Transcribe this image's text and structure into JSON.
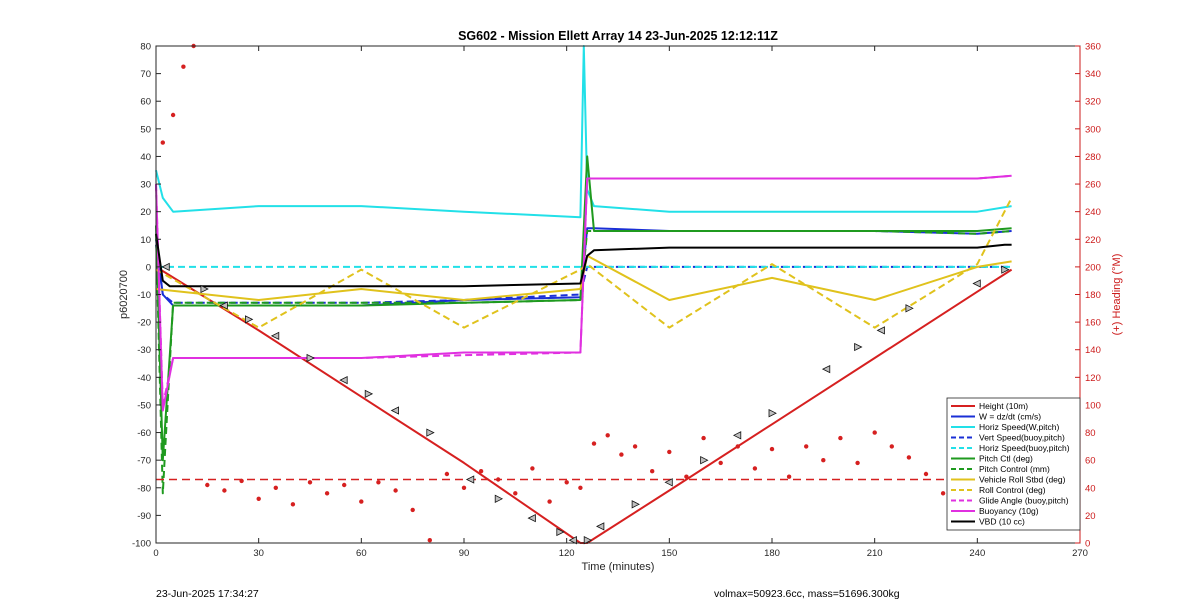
{
  "chart_data": {
    "type": "line",
    "title": "SG602 - Mission Ellett Array 14 23-Jun-2025 12:12:11Z",
    "xlabel": "Time (minutes)",
    "ylabel": "p6020700",
    "y2label": "(+) Heading (°M)",
    "xlim": [
      0,
      270
    ],
    "ylim": [
      -100,
      80
    ],
    "y2lim": [
      0,
      360
    ],
    "xticks": [
      "0",
      "30",
      "60",
      "90",
      "120",
      "150",
      "180",
      "210",
      "240",
      "270"
    ],
    "yticks": [
      "80",
      "70",
      "60",
      "50",
      "40",
      "30",
      "20",
      "10",
      "0",
      "-10",
      "-20",
      "-30",
      "-40",
      "-50",
      "-60",
      "-70",
      "-80",
      "-90",
      "-100"
    ],
    "y2ticks": [
      "360",
      "340",
      "320",
      "300",
      "280",
      "260",
      "240",
      "220",
      "200",
      "180",
      "160",
      "140",
      "120",
      "100",
      "80",
      "60",
      "40",
      "20",
      "0"
    ],
    "legend_position": "bottom-right",
    "series": [
      {
        "name": "Height (10m)",
        "color": "#d62020",
        "style": "solid",
        "x": [
          0,
          30,
          60,
          90,
          124,
          126,
          150,
          180,
          210,
          240,
          250
        ],
        "y": [
          0,
          -23,
          -47,
          -71,
          -100,
          -100,
          -81,
          -57,
          -33,
          -9,
          -1
        ]
      },
      {
        "name": "W = dz/dt (cm/s)",
        "color": "#1a2fd6",
        "style": "solid",
        "x": [
          0,
          2,
          5,
          30,
          60,
          90,
          124,
          126,
          128,
          150,
          180,
          210,
          240,
          250
        ],
        "y": [
          10,
          -10,
          -14,
          -14,
          -14,
          -12,
          -11,
          14,
          14,
          13,
          13,
          13,
          12,
          13
        ]
      },
      {
        "name": "Horiz Speed(W,pitch)",
        "color": "#22e0e8",
        "style": "solid",
        "x": [
          0,
          2,
          5,
          30,
          60,
          90,
          124,
          125,
          126,
          128,
          150,
          180,
          210,
          240,
          250
        ],
        "y": [
          35,
          25,
          20,
          22,
          22,
          20,
          18,
          80,
          28,
          22,
          20,
          20,
          20,
          20,
          22
        ]
      },
      {
        "name": "Vert Speed(buoy,pitch)",
        "color": "#1a2fd6",
        "style": "dashed",
        "x": [
          0,
          2,
          5,
          30,
          60,
          90,
          124,
          126,
          150,
          180,
          210,
          240,
          250
        ],
        "y": [
          8,
          -10,
          -13,
          -13,
          -13,
          -12,
          -10,
          0,
          0,
          0,
          0,
          0,
          0
        ]
      },
      {
        "name": "Horiz Speed(buoy,pitch)",
        "color": "#22e0e8",
        "style": "dashed",
        "x": [
          0,
          124,
          126,
          150,
          180,
          210,
          240,
          250
        ],
        "y": [
          0,
          0,
          0,
          0,
          0,
          0,
          0,
          0
        ]
      },
      {
        "name": "Pitch Ctl (deg)",
        "color": "#1f9a1f",
        "style": "solid",
        "x": [
          0,
          2,
          5,
          30,
          60,
          90,
          124,
          126,
          128,
          150,
          180,
          210,
          240,
          250
        ],
        "y": [
          15,
          -70,
          -14,
          -14,
          -14,
          -13,
          -12,
          40,
          13,
          13,
          13,
          13,
          13,
          14
        ]
      },
      {
        "name": "Pitch Control (mm)",
        "color": "#1f9a1f",
        "style": "dashed",
        "x": [
          0,
          2,
          5,
          30,
          60,
          90,
          124,
          126,
          128,
          150,
          180,
          210,
          240,
          250
        ],
        "y": [
          12,
          -82,
          -13,
          -13,
          -13,
          -13,
          -12,
          13,
          13,
          13,
          13,
          13,
          12,
          13
        ]
      },
      {
        "name": "Vehicle Roll Stbd (deg)",
        "color": "#e0c21c",
        "style": "solid",
        "x": [
          0,
          30,
          60,
          90,
          124,
          126,
          150,
          180,
          210,
          240,
          250
        ],
        "y": [
          -8,
          -12,
          -8,
          -12,
          -8,
          4,
          -12,
          -4,
          -12,
          0,
          2
        ]
      },
      {
        "name": "Roll Control (deg)",
        "color": "#e0c21c",
        "style": "dashed",
        "x": [
          0,
          30,
          60,
          90,
          124,
          126,
          150,
          180,
          210,
          240,
          250
        ],
        "y": [
          -1,
          -22,
          -1,
          -22,
          -1,
          1,
          -22,
          1,
          -22,
          1,
          25
        ]
      },
      {
        "name": "Glide Angle (buoy,pitch)",
        "color": "#e030e0",
        "style": "dashed",
        "x": [
          0,
          2,
          5,
          30,
          60,
          90,
          124,
          126,
          150,
          180,
          210,
          240,
          250
        ],
        "y": [
          30,
          -50,
          -33,
          -33,
          -33,
          -32,
          -31,
          32,
          32,
          32,
          32,
          32,
          33
        ]
      },
      {
        "name": "Buoyancy (10g)",
        "color": "#e030e0",
        "style": "solid",
        "x": [
          0,
          2,
          5,
          30,
          60,
          90,
          124,
          126,
          150,
          180,
          210,
          240,
          250
        ],
        "y": [
          30,
          -52,
          -33,
          -33,
          -33,
          -31,
          -31,
          32,
          32,
          32,
          32,
          32,
          33
        ]
      },
      {
        "name": "VBD (10 cc)",
        "color": "#000000",
        "style": "solid",
        "x": [
          0,
          2,
          4,
          30,
          60,
          90,
          124,
          126,
          128,
          150,
          180,
          210,
          240,
          248,
          250
        ],
        "y": [
          12,
          -5,
          -7,
          -7,
          -7,
          -7,
          -6,
          4,
          6,
          7,
          7,
          7,
          7,
          8,
          8
        ]
      }
    ],
    "heading_series": {
      "color": "#d62020",
      "axis": "right",
      "style": "dotted",
      "reference_line": 46,
      "x": [
        2,
        5,
        8,
        11,
        15,
        20,
        25,
        30,
        35,
        40,
        45,
        50,
        55,
        60,
        65,
        70,
        75,
        80,
        85,
        90,
        95,
        100,
        105,
        110,
        115,
        120,
        124,
        128,
        132,
        136,
        140,
        145,
        150,
        155,
        160,
        165,
        170,
        175,
        180,
        185,
        190,
        195,
        200,
        205,
        210,
        215,
        220,
        225,
        230,
        235,
        240,
        245,
        248
      ],
      "y": [
        290,
        310,
        345,
        360,
        42,
        38,
        45,
        32,
        40,
        28,
        44,
        36,
        42,
        30,
        44,
        38,
        24,
        2,
        50,
        40,
        52,
        46,
        36,
        54,
        30,
        44,
        40,
        72,
        78,
        64,
        70,
        52,
        66,
        48,
        76,
        58,
        70,
        54,
        68,
        48,
        70,
        60,
        76,
        58,
        80,
        70,
        62,
        50,
        36,
        48,
        44,
        44,
        40
      ]
    },
    "direction_markers": {
      "x": [
        3,
        14,
        20,
        27,
        35,
        45,
        55,
        62,
        70,
        80,
        92,
        100,
        110,
        118,
        122,
        126,
        130,
        140,
        150,
        160,
        170,
        180,
        196,
        205,
        212,
        220,
        240,
        248
      ],
      "y": [
        0,
        -8,
        -14,
        -19,
        -25,
        -33,
        -41,
        -46,
        -52,
        -60,
        -77,
        -84,
        -91,
        -96,
        -99,
        -99,
        -94,
        -86,
        -78,
        -70,
        -61,
        -53,
        -37,
        -29,
        -23,
        -15,
        -6,
        -1
      ]
    }
  },
  "footer": {
    "timestamp": "23-Jun-2025 17:34:27",
    "vehicle_params": "volmax=50923.6cc, mass=51696.300kg"
  }
}
